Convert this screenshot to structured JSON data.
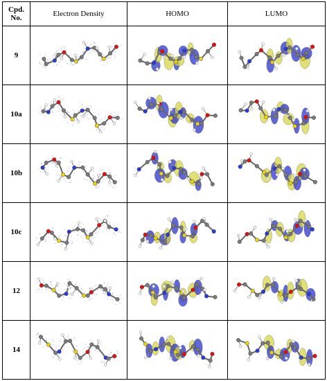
{
  "table": {
    "headers": {
      "cpd_line1": "Cpd.",
      "cpd_line2": "No.",
      "col1": "Electron Density",
      "col2": "HOMO",
      "col3": "LUMO"
    },
    "rows": [
      {
        "id": "9"
      },
      {
        "id": "10a"
      },
      {
        "id": "10b"
      },
      {
        "id": "10c"
      },
      {
        "id": "12"
      },
      {
        "id": "14"
      }
    ]
  },
  "colors": {
    "carbon": "#7a7a7a",
    "hydrogen": "#f2f2f2",
    "nitrogen": "#2b3bd6",
    "oxygen": "#e01010",
    "sulfur": "#e6d21a",
    "lobe_positive": "#2c34c9",
    "lobe_negative": "#d6d64a",
    "density_dots": "#8a8ae6"
  }
}
